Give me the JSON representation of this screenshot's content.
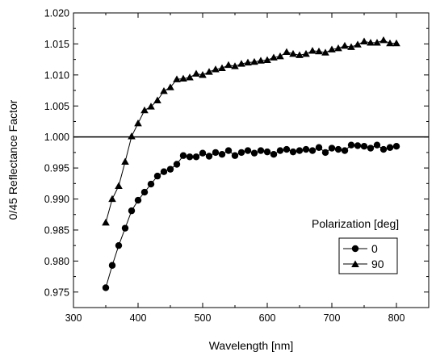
{
  "chart_data": {
    "type": "line",
    "xlabel": "Wavelength [nm]",
    "ylabel": "0/45 Reflectance Factor",
    "xlim": [
      300,
      850
    ],
    "ylim": [
      0.9725,
      1.02
    ],
    "xticks": [
      300,
      400,
      500,
      600,
      700,
      800
    ],
    "xtick_labels": [
      "300",
      "400",
      "500",
      "600",
      "700",
      "800"
    ],
    "yticks": [
      0.975,
      0.98,
      0.985,
      0.99,
      0.995,
      1.0,
      1.005,
      1.01,
      1.015,
      1.02
    ],
    "ytick_labels": [
      "0.975",
      "0.980",
      "0.985",
      "0.990",
      "0.995",
      "1.000",
      "1.005",
      "1.010",
      "1.015",
      "1.020"
    ],
    "reference_line": 1.0,
    "grid": false,
    "legend": {
      "title": "Polarization [deg]",
      "placement": "bottom-right"
    },
    "x": [
      350,
      360,
      370,
      380,
      390,
      400,
      410,
      420,
      430,
      440,
      450,
      460,
      470,
      480,
      490,
      500,
      510,
      520,
      530,
      540,
      550,
      560,
      570,
      580,
      590,
      600,
      610,
      620,
      630,
      640,
      650,
      660,
      670,
      680,
      690,
      700,
      710,
      720,
      730,
      740,
      750,
      760,
      770,
      780,
      790,
      800
    ],
    "series": [
      {
        "name": "0",
        "marker": "circle",
        "color": "#000000",
        "values": [
          0.9757,
          0.9793,
          0.9825,
          0.9853,
          0.9881,
          0.9898,
          0.9911,
          0.9924,
          0.9937,
          0.9944,
          0.9948,
          0.9956,
          0.997,
          0.9968,
          0.9968,
          0.9974,
          0.9969,
          0.9975,
          0.9972,
          0.9978,
          0.997,
          0.9975,
          0.9978,
          0.9974,
          0.9978,
          0.9976,
          0.9972,
          0.9978,
          0.998,
          0.9976,
          0.9978,
          0.998,
          0.9978,
          0.9983,
          0.9975,
          0.9982,
          0.998,
          0.9978,
          0.9987,
          0.9986,
          0.9985,
          0.9982,
          0.9987,
          0.998,
          0.9983,
          0.9985
        ]
      },
      {
        "name": "90",
        "marker": "triangle",
        "color": "#000000",
        "values": [
          0.9862,
          0.99,
          0.9921,
          0.996,
          1.0001,
          1.0022,
          1.0043,
          1.0049,
          1.0059,
          1.0074,
          1.008,
          1.0093,
          1.0094,
          1.0096,
          1.0102,
          1.01,
          1.0105,
          1.0109,
          1.0111,
          1.0116,
          1.0114,
          1.0118,
          1.012,
          1.0121,
          1.0123,
          1.0124,
          1.0128,
          1.013,
          1.0137,
          1.0134,
          1.0132,
          1.0134,
          1.0139,
          1.0138,
          1.0136,
          1.0141,
          1.0143,
          1.0147,
          1.0145,
          1.0149,
          1.0154,
          1.0152,
          1.0152,
          1.0156,
          1.0151,
          1.0151
        ]
      }
    ]
  }
}
